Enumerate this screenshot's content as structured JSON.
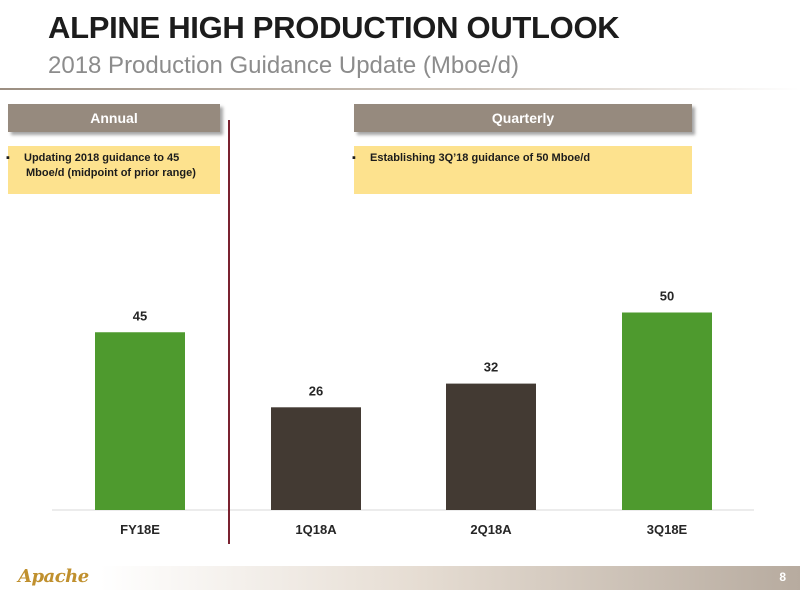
{
  "header": {
    "title": "ALPINE HIGH PRODUCTION OUTLOOK",
    "subtitle": "2018 Production Guidance Update (Mboe/d)"
  },
  "sections": {
    "annual": {
      "label": "Annual",
      "note": "Updating 2018 guidance to 45 Mboe/d (midpoint of prior range)"
    },
    "quarterly": {
      "label": "Quarterly",
      "note": "Establishing 3Q’18 guidance of 50 Mboe/d"
    }
  },
  "bullet_glyph": "▪",
  "chart_data": {
    "type": "bar",
    "title": "",
    "xlabel": "",
    "ylabel": "",
    "ylim": [
      0,
      60
    ],
    "grid": false,
    "categories": [
      "FY18E",
      "1Q18A",
      "2Q18A",
      "3Q18E"
    ],
    "values": [
      45,
      26,
      32,
      50
    ],
    "bar_colors": [
      "#4e9a2e",
      "#433a33",
      "#433a33",
      "#4e9a2e"
    ],
    "data_labels": [
      "45",
      "26",
      "32",
      "50"
    ]
  },
  "footer": {
    "logo_text": "Apache",
    "page_number": "8"
  },
  "colors": {
    "tab_background": "#968a7e",
    "note_background": "#fde28e",
    "divider": "#7a2230"
  }
}
